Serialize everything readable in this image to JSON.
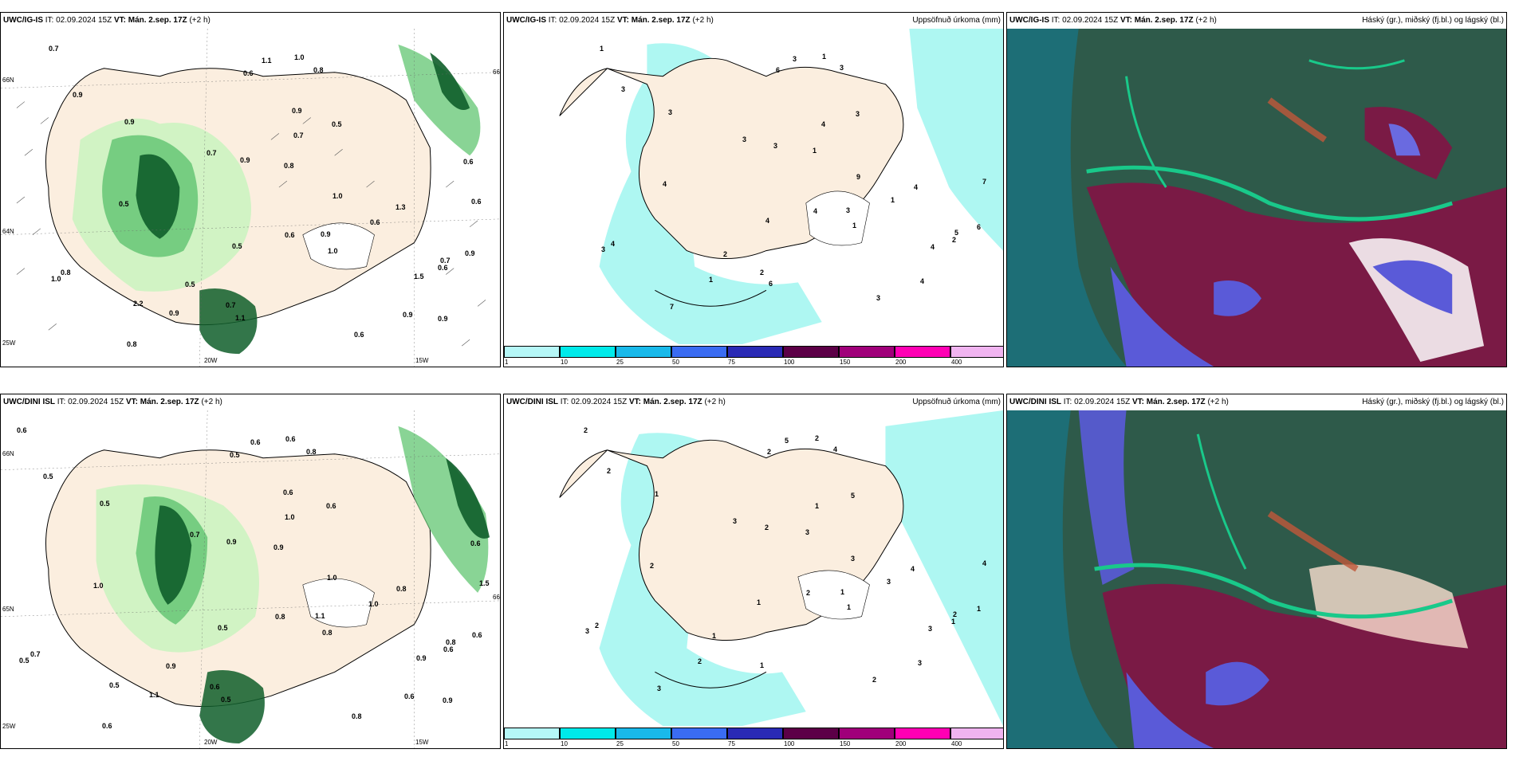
{
  "panels": [
    {
      "model": "UWC/IG-IS",
      "it_label": "IT:",
      "init": "02.09.2024 15Z",
      "vt_label": "VT:",
      "valid": "Mán. 2.sep. 17Z",
      "lead": "(+2 h)",
      "right_title": "",
      "type": "wind"
    },
    {
      "model": "UWC/IG-IS",
      "it_label": "IT:",
      "init": "02.09.2024 15Z",
      "vt_label": "VT:",
      "valid": "Mán. 2.sep. 17Z",
      "lead": "(+2 h)",
      "right_title": "Uppsöfnuð úrkoma (mm)",
      "type": "precip"
    },
    {
      "model": "UWC/IG-IS",
      "it_label": "IT:",
      "init": "02.09.2024 15Z",
      "vt_label": "VT:",
      "valid": "Mán. 2.sep. 17Z",
      "lead": "(+2 h)",
      "right_title": "Háský (gr.), miðský (fj.bl.) og lágský (bl.)",
      "type": "cloud"
    },
    {
      "model": "UWC/DINI ISL",
      "it_label": "IT:",
      "init": "02.09.2024 15Z",
      "vt_label": "VT:",
      "valid": "Mán. 2.sep. 17Z",
      "lead": "(+2 h)",
      "right_title": "",
      "type": "wind"
    },
    {
      "model": "UWC/DINI ISL",
      "it_label": "IT:",
      "init": "02.09.2024 15Z",
      "vt_label": "VT:",
      "valid": "Mán. 2.sep. 17Z",
      "lead": "(+2 h)",
      "right_title": "Uppsöfnuð úrkoma (mm)",
      "type": "precip"
    },
    {
      "model": "UWC/DINI ISL",
      "it_label": "IT:",
      "init": "02.09.2024 15Z",
      "vt_label": "VT:",
      "valid": "Mán. 2.sep. 17Z",
      "lead": "(+2 h)",
      "right_title": "Háský (gr.), miðský (fj.bl.) og lágský (bl.)",
      "type": "cloud"
    }
  ],
  "axis_labels": {
    "lat66": "66N",
    "lat64": "64N",
    "lat65": "65N",
    "lon20": "20W",
    "lon15": "15W",
    "lon25": "25W"
  },
  "colorbar": {
    "labels": [
      "1",
      "10",
      "25",
      "50",
      "75",
      "100",
      "150",
      "200",
      "400"
    ],
    "colors": [
      "#b5f7f7",
      "#00eaea",
      "#19b9ea",
      "#3a6cf2",
      "#2a2ab5",
      "#5c0047",
      "#a0007a",
      "#ff00b4",
      "#f0b4f0"
    ]
  },
  "colors": {
    "land": "#fbeedf",
    "sea": "#ffffff",
    "precip_light": "#aef7f2",
    "green_light": "#c9f3c0",
    "green_mid": "#6cc97a",
    "green_dark": "#0f5e2a",
    "cloud_high": "#2e5a4a",
    "cloud_mid": "#7a1a45",
    "cloud_low": "#5a5ad8",
    "cloud_edge": "#19c98a"
  },
  "precip_labels": {
    "p1": [
      "1",
      "2",
      "3",
      "4",
      "3",
      "3",
      "3",
      "4",
      "9",
      "6",
      "4",
      "3",
      "4",
      "3",
      "7",
      "6",
      "5",
      "4",
      "3",
      "2",
      "1",
      "1",
      "1",
      "1",
      "4",
      "3",
      "3",
      "7",
      "4",
      "4",
      "6",
      "3",
      "1",
      "2"
    ],
    "p4": [
      "2",
      "1",
      "2",
      "2",
      "3",
      "2",
      "4",
      "2",
      "3",
      "2",
      "2",
      "1",
      "4",
      "3",
      "3",
      "1",
      "2",
      "1",
      "1",
      "1",
      "3",
      "3",
      "1",
      "2",
      "3",
      "5",
      "5",
      "4",
      "3",
      "1",
      "1",
      "2",
      "2"
    ]
  },
  "wind_labels": {
    "w0": [
      "0.7",
      "0.6",
      "0.9",
      "0.6",
      "0.7",
      "0.9",
      "0.8",
      "0.5",
      "1.0",
      "0.6",
      "0.8",
      "0.9",
      "1.3",
      "1.0",
      "0.8",
      "1.1",
      "0.7",
      "0.5",
      "0.9",
      "0.5",
      "0.6",
      "0.8",
      "1.0",
      "1.0",
      "1.5",
      "0.5",
      "1.1",
      "0.6",
      "0.9",
      "0.7",
      "0.9",
      "0.6",
      "0.9",
      "0.7",
      "2.2",
      "0.9",
      "0.6",
      "0.9"
    ],
    "w3": [
      "0.6",
      "0.6",
      "0.5",
      "0.8",
      "0.7",
      "0.9",
      "0.8",
      "1.0",
      "1.0",
      "0.5",
      "0.7",
      "0.5",
      "0.8",
      "0.5",
      "0.6",
      "0.5",
      "0.8",
      "0.5",
      "1.1",
      "0.9",
      "1.0",
      "0.9",
      "0.8",
      "0.6",
      "0.9",
      "0.6",
      "0.6",
      "1.5",
      "0.6",
      "1.0",
      "0.6",
      "0.8",
      "1.1",
      "0.6",
      "0.5",
      "0.6",
      "0.6",
      "0.9"
    ]
  }
}
